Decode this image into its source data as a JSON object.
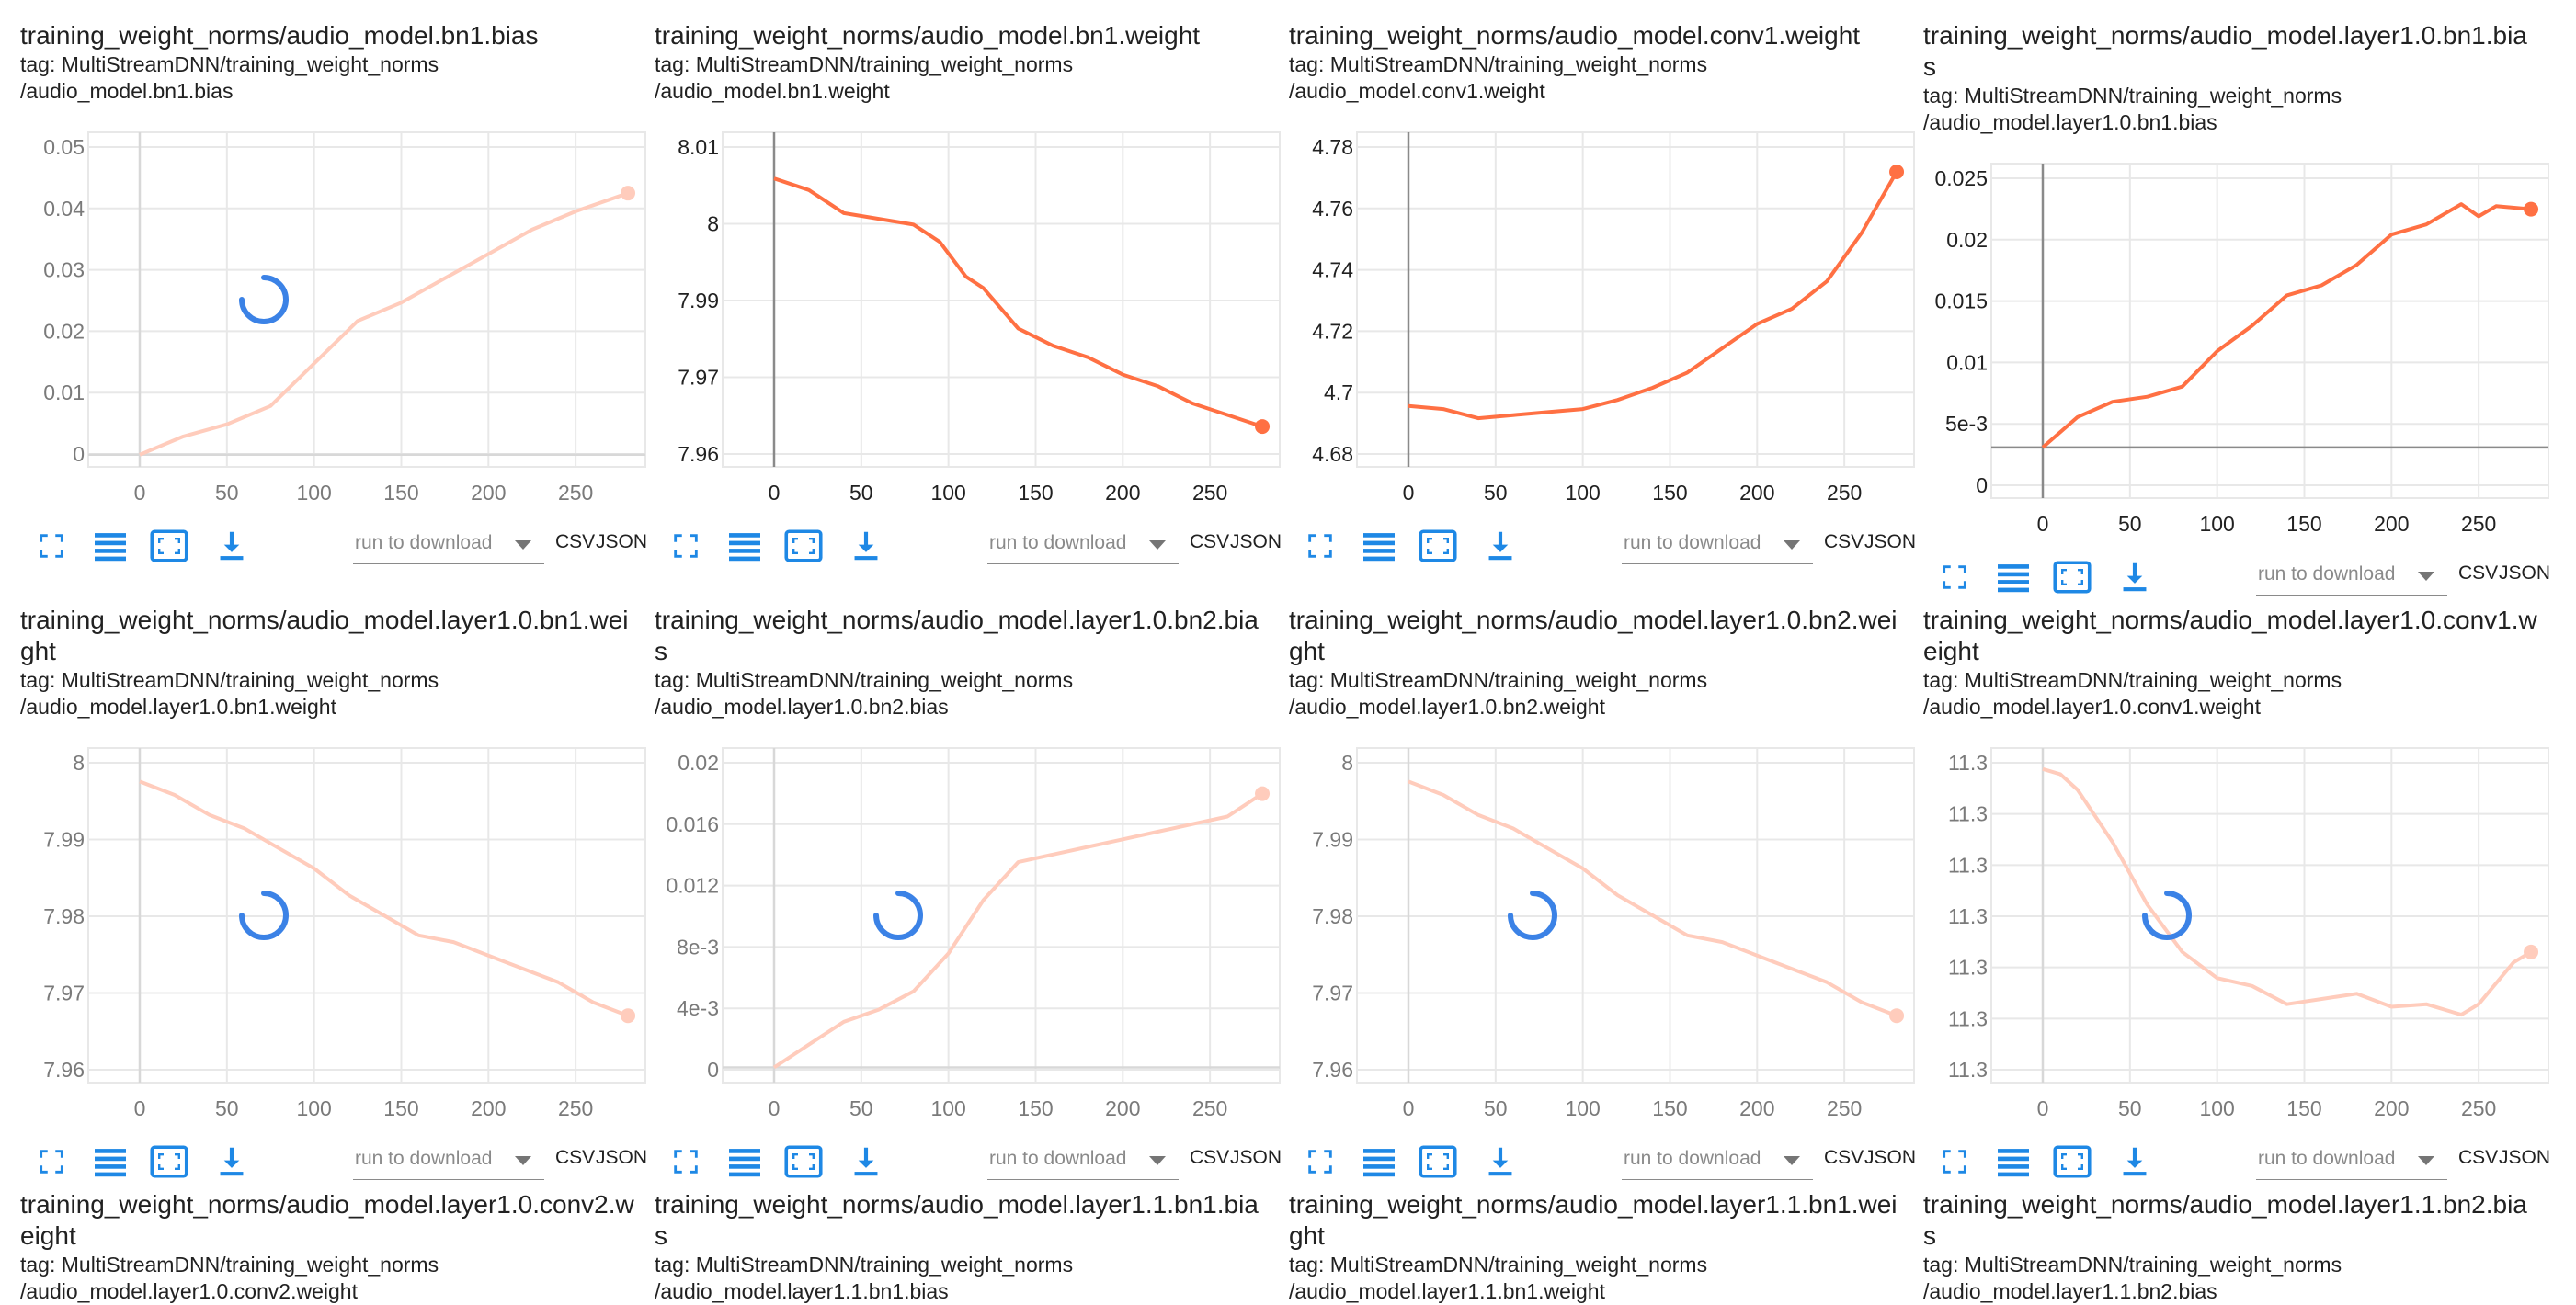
{
  "colors": {
    "series": "#ff7043",
    "series_faded": "#ffccbc",
    "grid": "#e8e8e8",
    "axis": "#9e9e9e",
    "icon": "#1e88e5",
    "spinner": "#3b82e6"
  },
  "toolbar": {
    "icons": [
      "fullscreen-icon",
      "list-icon",
      "fit-domain-icon",
      "download-icon"
    ],
    "download_placeholder": "run to download",
    "csv": "CSV",
    "json": "JSON"
  },
  "cards": [
    {
      "title": "training_weight_norms/audio_model.bn1.bias",
      "tag_line1": "tag: MultiStreamDNN/training_weight_norms",
      "tag_line2": "/audio_model.bn1.bias",
      "loading": true,
      "x_ticks": [
        "0",
        "50",
        "100",
        "150",
        "200",
        "250"
      ],
      "y_ticks": [
        "0",
        "0.01",
        "0.02",
        "0.03",
        "0.04",
        "0.05"
      ],
      "chart_data": {
        "type": "line",
        "x": [
          0,
          25,
          50,
          75,
          100,
          125,
          150,
          175,
          200,
          225,
          250,
          280
        ],
        "y": [
          0,
          0.003,
          0.005,
          0.008,
          0.015,
          0.022,
          0.025,
          0.029,
          0.033,
          0.037,
          0.04,
          0.043
        ],
        "xlim": [
          0,
          290
        ],
        "ylim": [
          -0.002,
          0.053
        ]
      }
    },
    {
      "title": "training_weight_norms/audio_model.bn1.weight",
      "tag_line1": "tag: MultiStreamDNN/training_weight_norms",
      "tag_line2": "/audio_model.bn1.weight",
      "loading": false,
      "x_ticks": [
        "0",
        "50",
        "100",
        "150",
        "200",
        "250"
      ],
      "y_ticks": [
        "7.96",
        "7.97",
        "7.99",
        "8",
        "8.01"
      ],
      "chart_data": {
        "type": "line",
        "x": [
          0,
          20,
          40,
          60,
          80,
          95,
          110,
          120,
          140,
          160,
          180,
          200,
          220,
          240,
          260,
          280
        ],
        "y": [
          8.005,
          8.003,
          7.999,
          7.998,
          7.997,
          7.994,
          7.988,
          7.986,
          7.979,
          7.976,
          7.974,
          7.971,
          7.969,
          7.966,
          7.964,
          7.962
        ],
        "xlim": [
          0,
          290
        ],
        "ylim": [
          7.955,
          8.013
        ]
      }
    },
    {
      "title": "training_weight_norms/audio_model.conv1.weight",
      "tag_line1": "tag: MultiStreamDNN/training_weight_norms",
      "tag_line2": "/audio_model.conv1.weight",
      "loading": false,
      "x_ticks": [
        "0",
        "50",
        "100",
        "150",
        "200",
        "250"
      ],
      "y_ticks": [
        "4.68",
        "4.7",
        "4.72",
        "4.74",
        "4.76",
        "4.78"
      ],
      "chart_data": {
        "type": "line",
        "x": [
          0,
          20,
          40,
          60,
          80,
          100,
          120,
          140,
          160,
          180,
          200,
          220,
          240,
          260,
          280
        ],
        "y": [
          4.695,
          4.694,
          4.691,
          4.692,
          4.693,
          4.694,
          4.697,
          4.701,
          4.706,
          4.714,
          4.722,
          4.727,
          4.736,
          4.752,
          4.772
        ],
        "xlim": [
          0,
          290
        ],
        "ylim": [
          4.675,
          4.785
        ]
      }
    },
    {
      "title": "training_weight_norms/audio_model.layer1.0.bn1.bias",
      "tag_line1": "tag: MultiStreamDNN/training_weight_norms",
      "tag_line2": "/audio_model.layer1.0.bn1.bias",
      "loading": false,
      "x_ticks": [
        "0",
        "50",
        "100",
        "150",
        "200",
        "250"
      ],
      "y_ticks": [
        "0",
        "5e-3",
        "0.01",
        "0.015",
        "0.02",
        "0.025"
      ],
      "chart_data": {
        "type": "line",
        "x": [
          0,
          20,
          40,
          60,
          80,
          100,
          120,
          140,
          160,
          180,
          200,
          220,
          240,
          250,
          260,
          280
        ],
        "y": [
          0,
          0.003,
          0.0045,
          0.005,
          0.006,
          0.0095,
          0.012,
          0.015,
          0.016,
          0.018,
          0.021,
          0.022,
          0.024,
          0.0228,
          0.0238,
          0.0235
        ],
        "xlim": [
          0,
          290
        ],
        "ylim": [
          -0.005,
          0.028
        ]
      }
    },
    {
      "title": "training_weight_norms/audio_model.layer1.0.bn1.weight",
      "tag_line1": "tag: MultiStreamDNN/training_weight_norms",
      "tag_line2": "/audio_model.layer1.0.bn1.weight",
      "loading": true,
      "x_ticks": [
        "0",
        "50",
        "100",
        "150",
        "200",
        "250"
      ],
      "y_ticks": [
        "7.96",
        "7.97",
        "7.98",
        "7.99",
        "8"
      ],
      "chart_data": {
        "type": "line",
        "x": [
          0,
          20,
          40,
          60,
          80,
          100,
          120,
          140,
          160,
          180,
          200,
          220,
          240,
          260,
          280
        ],
        "y": [
          8.0,
          7.998,
          7.995,
          7.993,
          7.99,
          7.987,
          7.983,
          7.98,
          7.977,
          7.976,
          7.974,
          7.972,
          7.97,
          7.967,
          7.965
        ],
        "xlim": [
          0,
          290
        ],
        "ylim": [
          7.955,
          8.005
        ]
      }
    },
    {
      "title": "training_weight_norms/audio_model.layer1.0.bn2.bias",
      "tag_line1": "tag: MultiStreamDNN/training_weight_norms",
      "tag_line2": "/audio_model.layer1.0.bn2.bias",
      "loading": true,
      "x_ticks": [
        "0",
        "50",
        "100",
        "150",
        "200",
        "250"
      ],
      "y_ticks": [
        "0",
        "4e-3",
        "8e-3",
        "0.012",
        "0.016",
        "0.02"
      ],
      "chart_data": {
        "type": "line",
        "x": [
          0,
          20,
          40,
          60,
          80,
          100,
          120,
          140,
          160,
          180,
          200,
          220,
          240,
          260,
          280
        ],
        "y": [
          0,
          0.0015,
          0.003,
          0.0038,
          0.005,
          0.0075,
          0.011,
          0.0135,
          0.014,
          0.0145,
          0.015,
          0.0155,
          0.016,
          0.0165,
          0.018
        ],
        "xlim": [
          0,
          290
        ],
        "ylim": [
          -0.001,
          0.021
        ]
      }
    },
    {
      "title": "training_weight_norms/audio_model.layer1.0.bn2.weight",
      "tag_line1": "tag: MultiStreamDNN/training_weight_norms",
      "tag_line2": "/audio_model.layer1.0.bn2.weight",
      "loading": true,
      "x_ticks": [
        "0",
        "50",
        "100",
        "150",
        "200",
        "250"
      ],
      "y_ticks": [
        "7.96",
        "7.97",
        "7.98",
        "7.99",
        "8"
      ],
      "chart_data": {
        "type": "line",
        "x": [
          0,
          20,
          40,
          60,
          80,
          100,
          120,
          140,
          160,
          180,
          200,
          220,
          240,
          260,
          280
        ],
        "y": [
          8.0,
          7.998,
          7.995,
          7.993,
          7.99,
          7.987,
          7.983,
          7.98,
          7.977,
          7.976,
          7.974,
          7.972,
          7.97,
          7.967,
          7.965
        ],
        "xlim": [
          0,
          290
        ],
        "ylim": [
          7.955,
          8.005
        ]
      }
    },
    {
      "title": "training_weight_norms/audio_model.layer1.0.conv1.weight",
      "tag_line1": "tag: MultiStreamDNN/training_weight_norms",
      "tag_line2": "/audio_model.layer1.0.conv1.weight",
      "loading": true,
      "x_ticks": [
        "0",
        "50",
        "100",
        "150",
        "200",
        "250"
      ],
      "y_ticks": [
        "11.3",
        "11.3",
        "11.3",
        "11.3",
        "11.3",
        "11.3",
        "11.3"
      ],
      "chart_data": {
        "type": "line",
        "x": [
          0,
          10,
          20,
          40,
          60,
          80,
          100,
          120,
          140,
          160,
          180,
          200,
          220,
          240,
          250,
          260,
          270,
          280
        ],
        "y": [
          6.0,
          5.9,
          5.6,
          4.6,
          3.4,
          2.5,
          2.0,
          1.85,
          1.5,
          1.6,
          1.7,
          1.45,
          1.5,
          1.3,
          1.5,
          1.9,
          2.3,
          2.5
        ],
        "xlim": [
          0,
          290
        ],
        "ylim": [
          0,
          6.4
        ]
      }
    },
    {
      "title": "training_weight_norms/audio_model.layer1.0.conv2.weight",
      "tag_line1": "tag: MultiStreamDNN/training_weight_norms",
      "tag_line2": "/audio_model.layer1.0.conv2.weight"
    },
    {
      "title": "training_weight_norms/audio_model.layer1.1.bn1.bias",
      "tag_line1": "tag: MultiStreamDNN/training_weight_norms",
      "tag_line2": "/audio_model.layer1.1.bn1.bias"
    },
    {
      "title": "training_weight_norms/audio_model.layer1.1.bn1.weight",
      "tag_line1": "tag: MultiStreamDNN/training_weight_norms",
      "tag_line2": "/audio_model.layer1.1.bn1.weight"
    },
    {
      "title": "training_weight_norms/audio_model.layer1.1.bn2.bias",
      "tag_line1": "tag: MultiStreamDNN/training_weight_norms",
      "tag_line2": "/audio_model.layer1.1.bn2.bias"
    }
  ]
}
